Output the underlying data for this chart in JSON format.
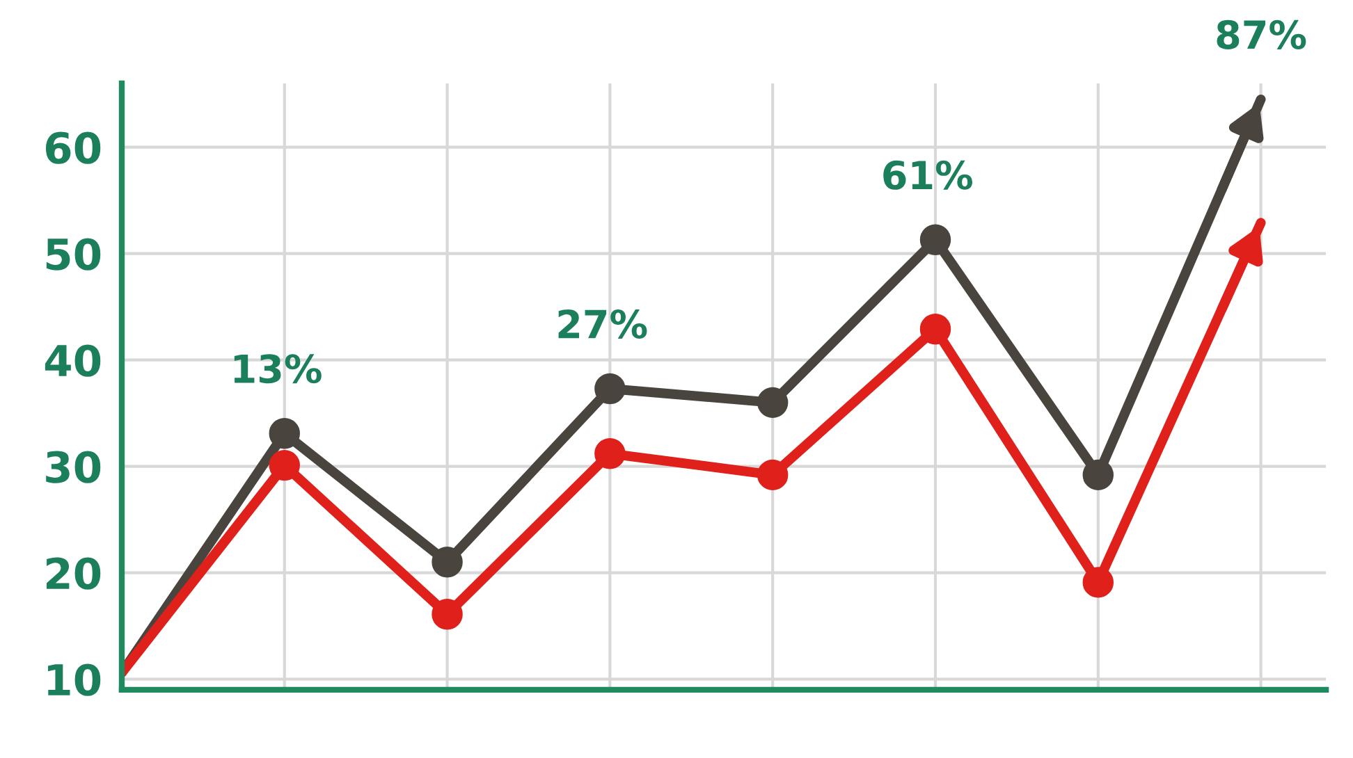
{
  "chart_data": {
    "type": "line",
    "categories": [
      null,
      null,
      null,
      null,
      null,
      null,
      null,
      null
    ],
    "series": [
      {
        "color": "#4a443e",
        "values": [
          10.6,
          33.1,
          21.0,
          37.3,
          36.0,
          51.3,
          29.2,
          64.5
        ]
      },
      {
        "color": "#e0201b",
        "values": [
          10.6,
          30.1,
          16.1,
          31.2,
          29.2,
          42.9,
          19.1,
          52.9
        ]
      }
    ],
    "ylim": [
      9,
      66
    ],
    "yticks": [
      10,
      20,
      30,
      40,
      50,
      60
    ],
    "tick_labels": "y",
    "grid": true,
    "marker": "circle",
    "line_style": "solid",
    "annotations": [
      "13%",
      "27%",
      "61%",
      "87%"
    ]
  }
}
